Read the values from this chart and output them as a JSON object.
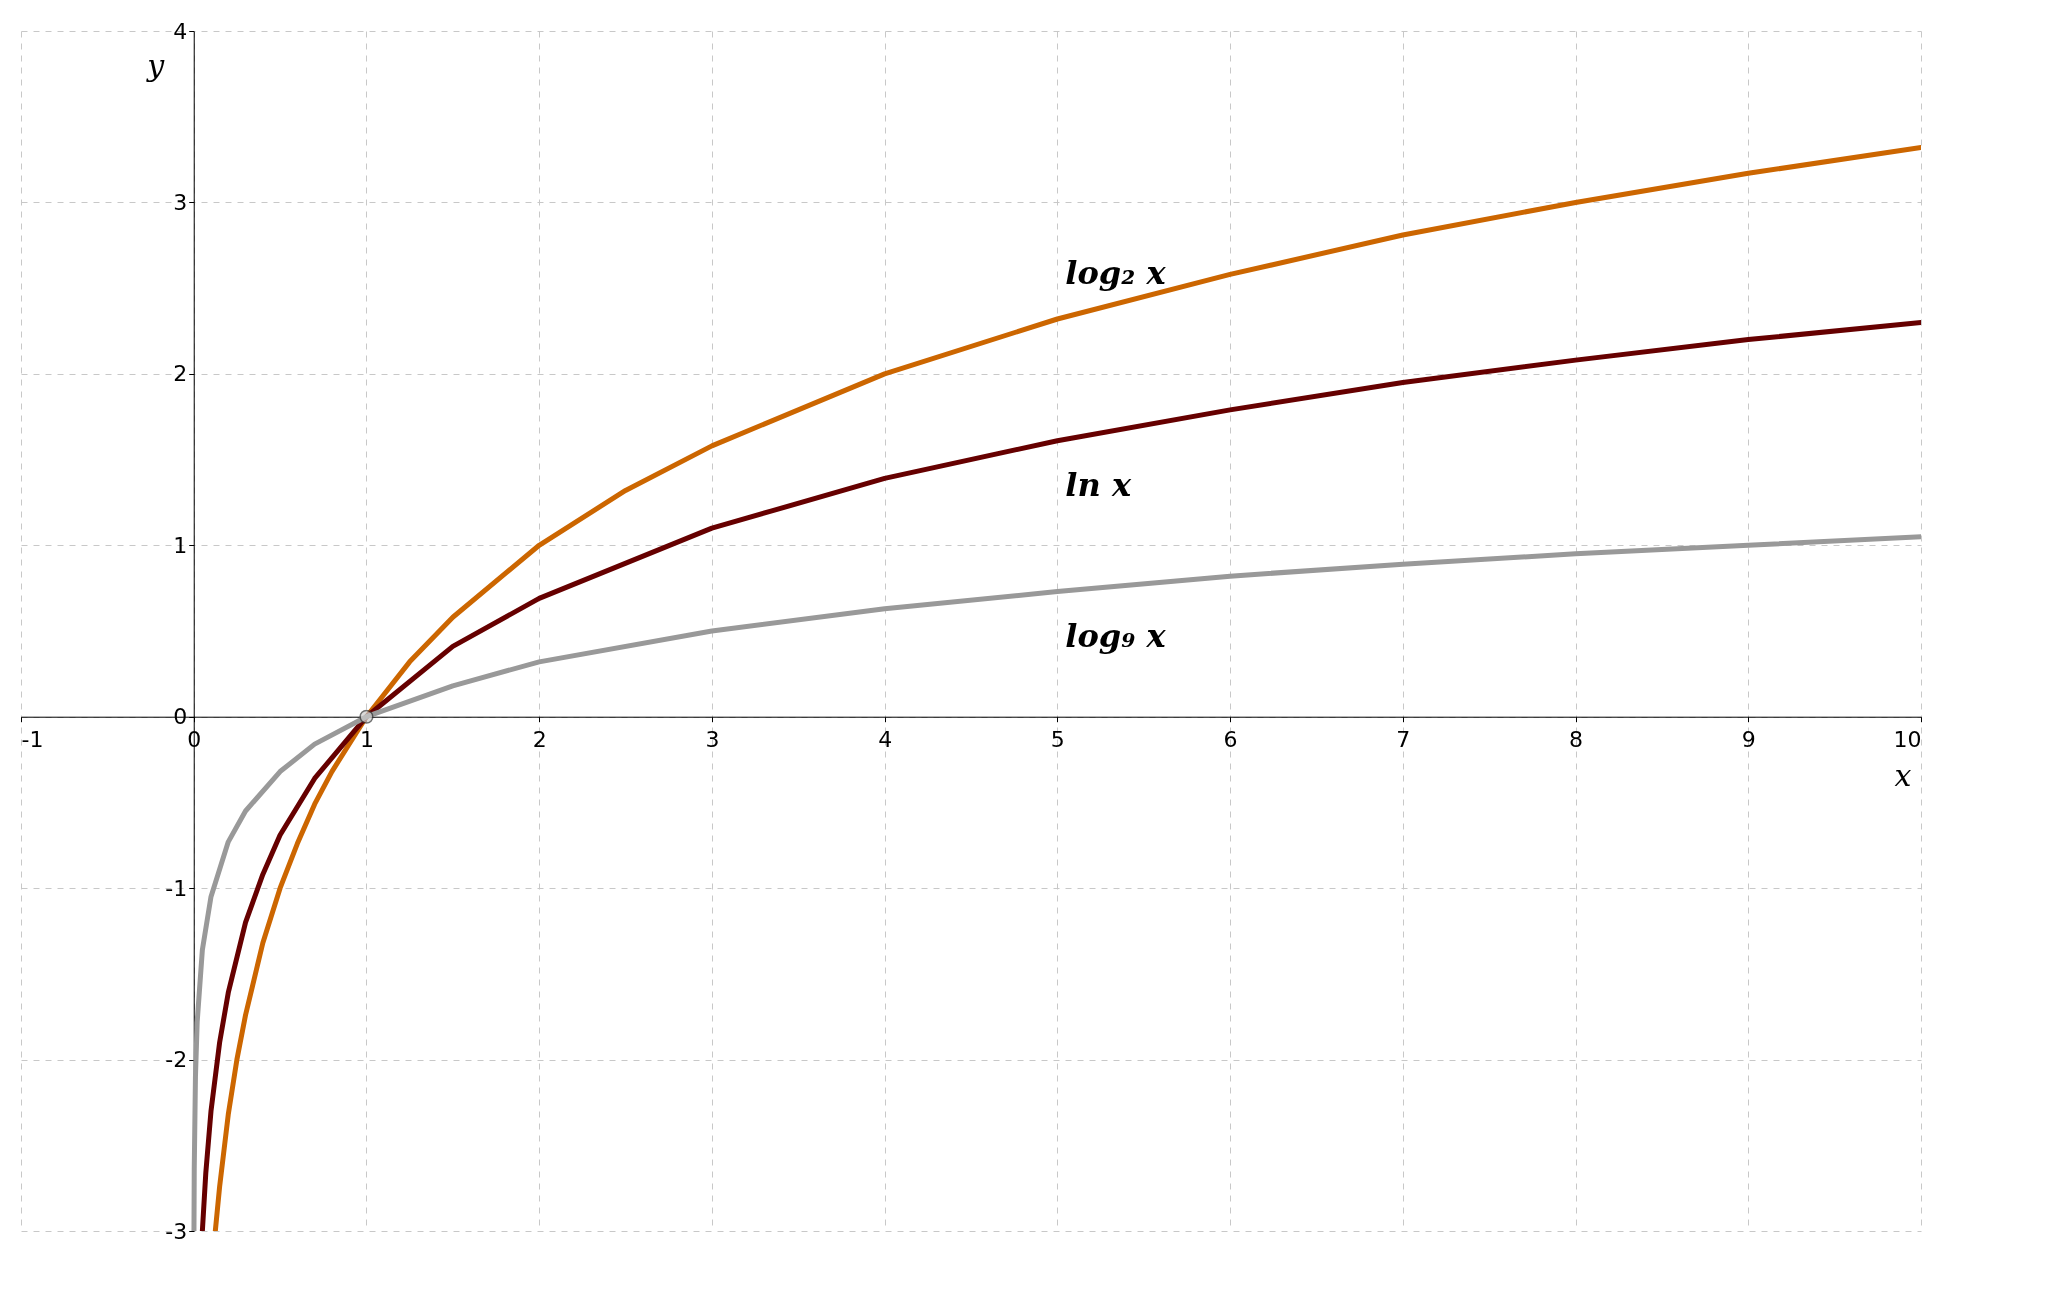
{
  "chart_data": {
    "type": "line",
    "xlabel": "x",
    "ylabel": "y",
    "xlim": [
      -1,
      10
    ],
    "ylim": [
      -3,
      4
    ],
    "xticks": [
      -1,
      0,
      1,
      2,
      3,
      4,
      5,
      6,
      7,
      8,
      9,
      10
    ],
    "yticks": [
      -3,
      -2,
      -1,
      0,
      1,
      2,
      3,
      4
    ],
    "grid": true,
    "line_style": "solid",
    "series": [
      {
        "name": "log₂ x",
        "color": "#cc6600",
        "x": [
          0.125,
          0.15,
          0.2,
          0.25,
          0.3,
          0.4,
          0.5,
          0.6,
          0.7,
          0.8,
          1,
          1.25,
          1.5,
          2,
          2.5,
          3,
          4,
          5,
          6,
          7,
          8,
          9,
          10
        ],
        "values": [
          -3,
          -2.74,
          -2.32,
          -2,
          -1.74,
          -1.32,
          -1,
          -0.74,
          -0.51,
          -0.32,
          0,
          0.32,
          0.58,
          1,
          1.32,
          1.58,
          2,
          2.32,
          2.58,
          2.81,
          3,
          3.17,
          3.32
        ]
      },
      {
        "name": "ln x",
        "color": "#660000",
        "x": [
          0.05,
          0.07,
          0.1,
          0.15,
          0.2,
          0.3,
          0.4,
          0.5,
          0.7,
          1,
          1.5,
          2,
          3,
          4,
          5,
          6,
          7,
          8,
          9,
          10
        ],
        "values": [
          -3,
          -2.66,
          -2.3,
          -1.9,
          -1.61,
          -1.2,
          -0.92,
          -0.69,
          -0.36,
          0,
          0.41,
          0.69,
          1.1,
          1.39,
          1.61,
          1.79,
          1.95,
          2.08,
          2.2,
          2.3
        ]
      },
      {
        "name": "log₉ x",
        "color": "#999999",
        "x": [
          0.0014,
          0.003,
          0.01,
          0.02,
          0.05,
          0.1,
          0.2,
          0.3,
          0.5,
          0.7,
          1,
          1.5,
          2,
          3,
          4,
          5,
          6,
          7,
          8,
          9,
          10
        ],
        "values": [
          -3,
          -2.64,
          -2.1,
          -1.78,
          -1.36,
          -1.05,
          -0.73,
          -0.55,
          -0.32,
          -0.16,
          0,
          0.18,
          0.32,
          0.5,
          0.63,
          0.73,
          0.82,
          0.89,
          0.95,
          1,
          1.05
        ]
      },
      {
        "type": "scatter",
        "marker": "circle",
        "color": "#cccccc",
        "x": [
          1
        ],
        "values": [
          0
        ]
      }
    ]
  }
}
